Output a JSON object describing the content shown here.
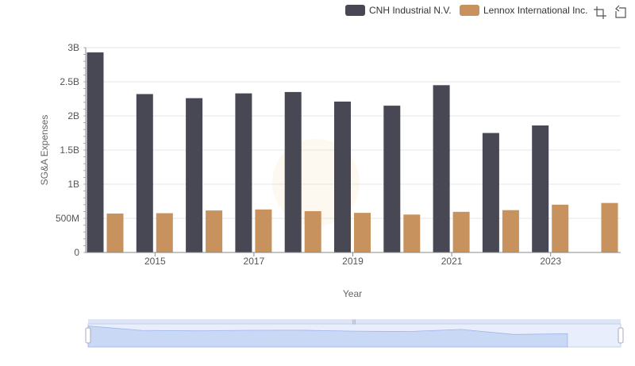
{
  "toolbar": {
    "icons": [
      "crop-icon",
      "restore-icon"
    ]
  },
  "chart_data": {
    "type": "bar",
    "title": "",
    "xlabel": "Year",
    "ylabel": "SG&A Expenses",
    "categories": [
      "2014",
      "2015",
      "2016",
      "2017",
      "2018",
      "2019",
      "2020",
      "2021",
      "2022",
      "2023",
      "2024"
    ],
    "x_tick_labels": [
      "2015",
      "2017",
      "2019",
      "2021",
      "2023"
    ],
    "y_tick_labels": [
      "0",
      "500M",
      "1B",
      "1.5B",
      "2B",
      "2.5B",
      "3B"
    ],
    "ylim": [
      0,
      3000000000
    ],
    "legend_position": "top-right",
    "grid": true,
    "series": [
      {
        "name": "CNH Industrial N.V.",
        "color": "#484854",
        "values": [
          2930000000,
          2320000000,
          2260000000,
          2330000000,
          2350000000,
          2210000000,
          2150000000,
          2450000000,
          1750000000,
          1860000000,
          null
        ]
      },
      {
        "name": "Lennox International Inc.",
        "color": "#c8925e",
        "values": [
          570000000,
          575000000,
          615000000,
          630000000,
          605000000,
          580000000,
          555000000,
          595000000,
          620000000,
          700000000,
          725000000
        ]
      }
    ]
  },
  "slider": {
    "handle_label": "|||"
  }
}
